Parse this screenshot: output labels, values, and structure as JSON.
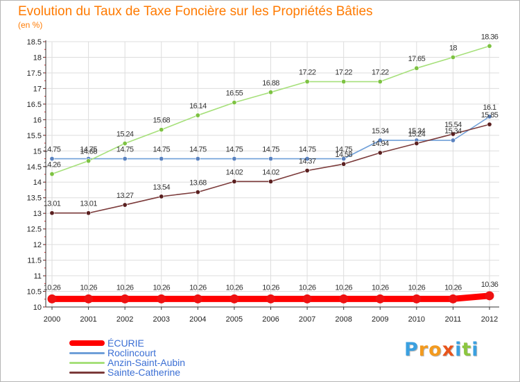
{
  "header": {
    "title": "Evolution du Taux de Taxe Foncière sur les Propriétés Bâties",
    "unit": "(en %)"
  },
  "colors": {
    "title": "#ff7a00",
    "legend_text": "#3b6fd4",
    "axis": "#333333",
    "grid": "#dddddd"
  },
  "brand": {
    "name": "Proxiti",
    "letters": [
      "P",
      "r",
      "o",
      "x",
      "i",
      "t",
      "i"
    ],
    "letter_colors": [
      "#3aa0e0",
      "#f39a1e",
      "#f39a1e",
      "#e8541b",
      "#3aa0e0",
      "#8cc63f",
      "#3aa0e0"
    ]
  },
  "chart_data": {
    "type": "line",
    "title": "Evolution du Taux de Taxe Foncière sur les Propriétés Bâties",
    "ylabel": "(en %)",
    "xlabel": "",
    "ylim": [
      10,
      18.5
    ],
    "y_ticks": [
      "10",
      "10.5",
      "11",
      "11.5",
      "12",
      "12.5",
      "13",
      "13.5",
      "14",
      "14.5",
      "15",
      "15.5",
      "16",
      "16.5",
      "17",
      "17.5",
      "18",
      "18.5"
    ],
    "categories": [
      "2000",
      "2001",
      "2002",
      "2003",
      "2004",
      "2005",
      "2006",
      "2007",
      "2008",
      "2009",
      "2010",
      "2011",
      "2012"
    ],
    "series": [
      {
        "name": "ÉCURIE",
        "color": "#ff0000",
        "marker_color": "#ee1111",
        "thick": true,
        "values": [
          10.26,
          10.26,
          10.26,
          10.26,
          10.26,
          10.26,
          10.26,
          10.26,
          10.26,
          10.26,
          10.26,
          10.26,
          10.36
        ],
        "labels": [
          "10.26",
          "10.26",
          "10.26",
          "10.26",
          "10.26",
          "10.26",
          "10.26",
          "10.26",
          "10.26",
          "10.26",
          "10.26",
          "10.26",
          "10.36"
        ]
      },
      {
        "name": "Roclincourt",
        "color": "#6f9fd8",
        "marker_color": "#5a82bf",
        "thick": false,
        "values": [
          14.75,
          14.75,
          14.75,
          14.75,
          14.75,
          14.75,
          14.75,
          14.75,
          14.75,
          15.34,
          15.34,
          15.34,
          16.1
        ],
        "labels": [
          "14.75",
          "14.75",
          "14.75",
          "14.75",
          "14.75",
          "14.75",
          "14.75",
          "14.75",
          "14.75",
          "15.34",
          "15.34",
          "15.34",
          "16.1"
        ]
      },
      {
        "name": "Anzin-Saint-Aubin",
        "color": "#a6e07a",
        "marker_color": "#7dc242",
        "thick": false,
        "values": [
          14.26,
          14.68,
          15.24,
          15.68,
          16.14,
          16.55,
          16.88,
          17.22,
          17.22,
          17.22,
          17.65,
          18,
          18.36
        ],
        "labels": [
          "14.26",
          "14.68",
          "15.24",
          "15.68",
          "16.14",
          "16.55",
          "16.88",
          "17.22",
          "17.22",
          "17.22",
          "17.65",
          "18",
          "18.36"
        ]
      },
      {
        "name": "Sainte-Catherine",
        "color": "#7b3a3a",
        "marker_color": "#5a1f1f",
        "thick": false,
        "values": [
          13.01,
          13.01,
          13.27,
          13.54,
          13.68,
          14.02,
          14.02,
          14.37,
          14.58,
          14.94,
          15.24,
          15.54,
          15.85
        ],
        "labels": [
          "13.01",
          "13.01",
          "13.27",
          "13.54",
          "13.68",
          "14.02",
          "14.02",
          "14.37",
          "14.58",
          "14.94",
          "15.24",
          "15.54",
          "15.85"
        ]
      }
    ]
  }
}
